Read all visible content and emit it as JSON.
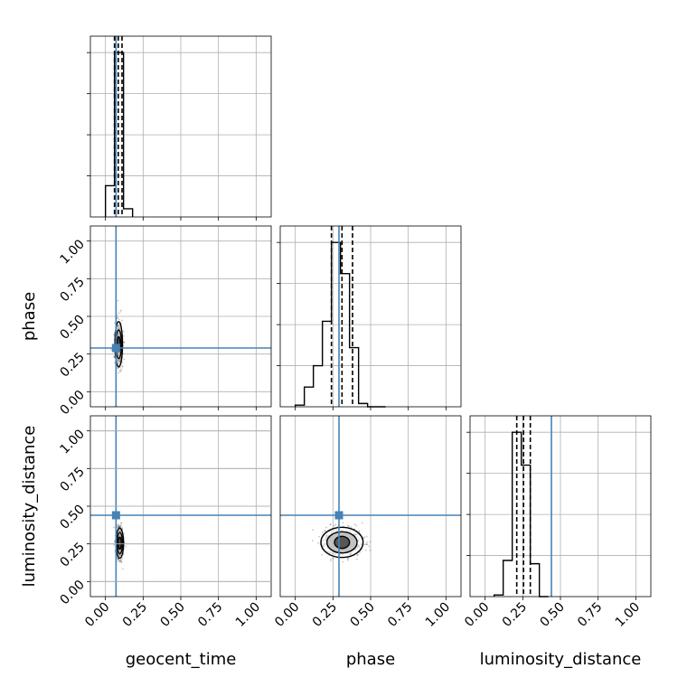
{
  "chart_data": {
    "type": "corner",
    "parameters": [
      "geocent_time",
      "phase",
      "luminosity_distance"
    ],
    "axis_labels": {
      "x": [
        "geocent_time",
        "phase",
        "luminosity_distance"
      ],
      "y": [
        "",
        "phase",
        "luminosity_distance"
      ]
    },
    "ticks": [
      0.0,
      0.25,
      0.5,
      0.75,
      1.0
    ],
    "tick_labels": [
      "0.00",
      "0.25",
      "0.50",
      "0.75",
      "1.00"
    ],
    "range": [
      -0.1,
      1.1
    ],
    "grid": true,
    "injection": {
      "geocent_time": 0.07,
      "phase": 0.29,
      "luminosity_distance": 0.44,
      "color": "#4682b4"
    },
    "histograms": [
      {
        "param": "geocent_time",
        "bin_edges": [
          0.0,
          0.06,
          0.12,
          0.18
        ],
        "counts": [
          0.19,
          1.0,
          0.05
        ],
        "quantile_lines": [
          0.06,
          0.085,
          0.11
        ]
      },
      {
        "param": "phase",
        "bin_edges": [
          0.0,
          0.06,
          0.12,
          0.18,
          0.24,
          0.3,
          0.36,
          0.42,
          0.48,
          0.54,
          0.6
        ],
        "counts": [
          0.01,
          0.12,
          0.25,
          0.52,
          1.0,
          0.81,
          0.36,
          0.02,
          0.0,
          0.0
        ],
        "quantile_lines": [
          0.24,
          0.31,
          0.38
        ]
      },
      {
        "param": "luminosity_distance",
        "bin_edges": [
          0.06,
          0.12,
          0.18,
          0.24,
          0.3,
          0.36,
          0.42
        ],
        "counts": [
          0.01,
          0.22,
          1.0,
          0.8,
          0.2,
          0.0
        ],
        "quantile_lines": [
          0.21,
          0.255,
          0.3
        ]
      }
    ],
    "posteriors_2d": [
      {
        "x": "geocent_time",
        "y": "phase",
        "center": [
          0.088,
          0.315
        ],
        "sd": [
          0.012,
          0.075
        ],
        "contours": [
          {
            "rx": 0.025,
            "ry": 0.15
          },
          {
            "rx": 0.018,
            "ry": 0.095
          },
          {
            "rx": 0.01,
            "ry": 0.05
          }
        ]
      },
      {
        "x": "geocent_time",
        "y": "luminosity_distance",
        "center": [
          0.095,
          0.255
        ],
        "sd": [
          0.012,
          0.05
        ],
        "contours": [
          {
            "rx": 0.025,
            "ry": 0.1
          },
          {
            "rx": 0.018,
            "ry": 0.07
          },
          {
            "rx": 0.01,
            "ry": 0.04
          }
        ]
      },
      {
        "x": "phase",
        "y": "luminosity_distance",
        "center": [
          0.31,
          0.26
        ],
        "sd": [
          0.065,
          0.045
        ],
        "contours": [
          {
            "rx": 0.14,
            "ry": 0.1
          },
          {
            "rx": 0.1,
            "ry": 0.07
          },
          {
            "rx": 0.05,
            "ry": 0.04
          }
        ]
      }
    ]
  }
}
